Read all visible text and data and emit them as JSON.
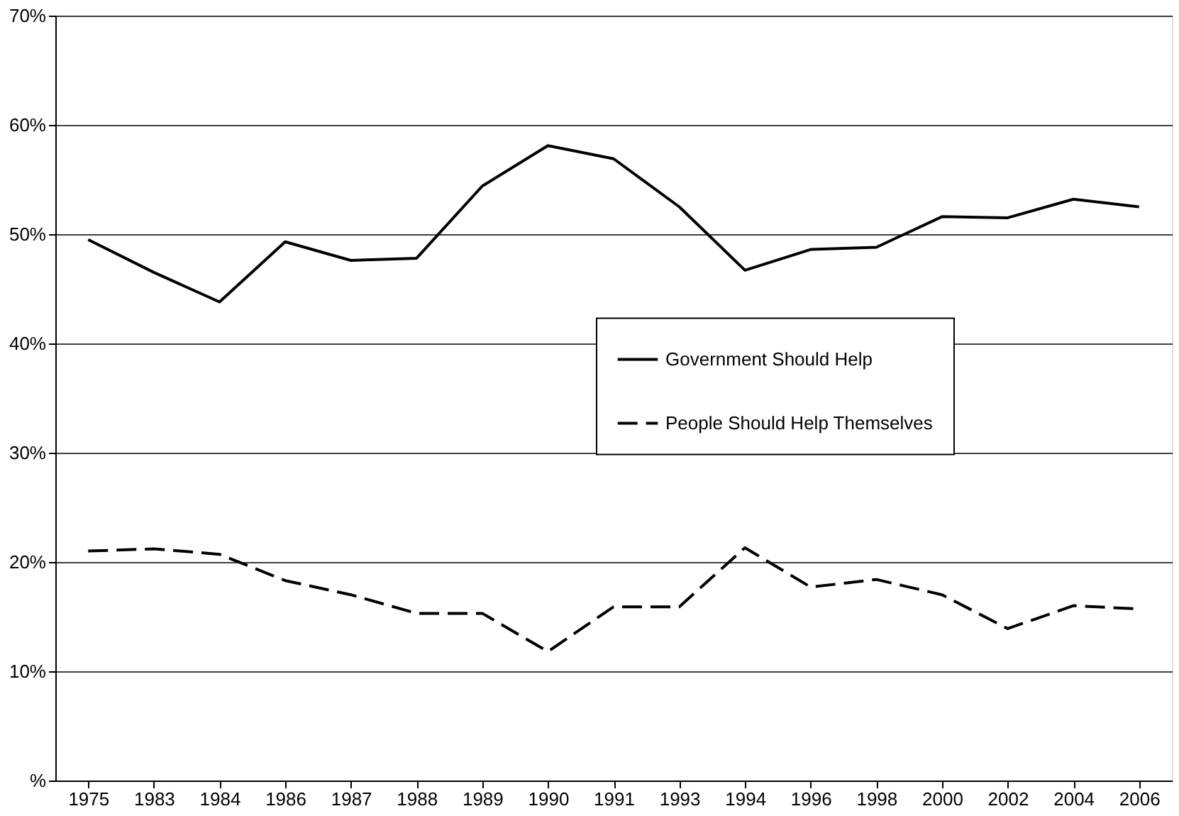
{
  "chart_data": {
    "type": "line",
    "categories": [
      "1975",
      "1983",
      "1984",
      "1986",
      "1987",
      "1988",
      "1989",
      "1990",
      "1991",
      "1993",
      "1994",
      "1996",
      "1998",
      "2000",
      "2002",
      "2004",
      "2006"
    ],
    "series": [
      {
        "name": "Government Should Help",
        "color": "#000000",
        "line_style": "solid",
        "values": [
          49.5,
          46.5,
          43.8,
          49.3,
          47.6,
          47.8,
          54.4,
          58.1,
          56.9,
          52.5,
          46.7,
          48.6,
          48.8,
          51.6,
          51.5,
          53.2,
          52.5
        ]
      },
      {
        "name": "People Should Help Themselves",
        "color": "#000000",
        "line_style": "dashed",
        "values": [
          21.0,
          21.2,
          20.7,
          18.3,
          17.0,
          15.3,
          15.3,
          11.8,
          15.9,
          15.9,
          21.3,
          17.7,
          18.4,
          17.0,
          13.9,
          16.0,
          15.7
        ]
      }
    ],
    "ylim": [
      0,
      70
    ],
    "yticks": [
      {
        "value": 0,
        "label": "%"
      },
      {
        "value": 10,
        "label": "10%"
      },
      {
        "value": 20,
        "label": "20%"
      },
      {
        "value": 30,
        "label": "30%"
      },
      {
        "value": 40,
        "label": "40%"
      },
      {
        "value": 50,
        "label": "50%"
      },
      {
        "value": 60,
        "label": "60%"
      },
      {
        "value": 70,
        "label": "70%"
      }
    ],
    "grid": "y",
    "legend": "right",
    "marker": "none"
  }
}
